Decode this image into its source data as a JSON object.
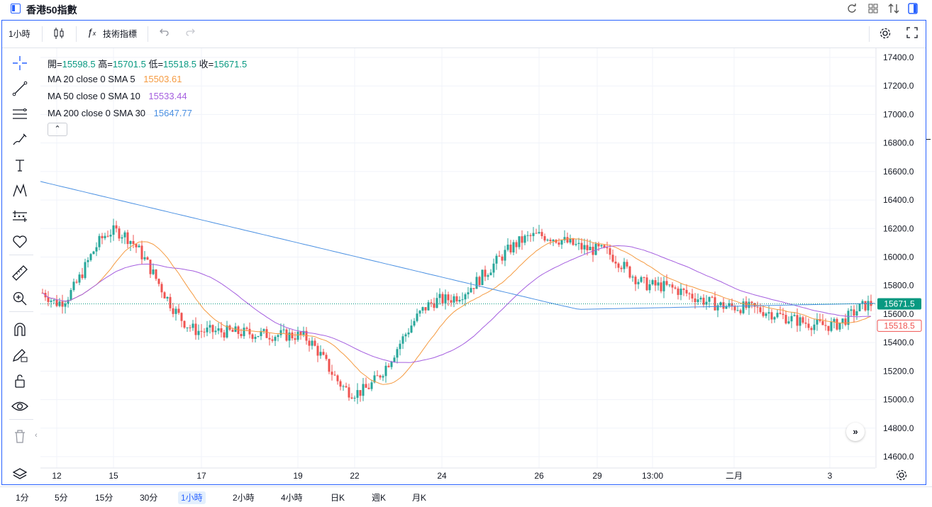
{
  "window": {
    "title": "香港50指數",
    "right_icons": [
      "refresh-icon",
      "grid-icon",
      "compare-icon",
      "panel-icon"
    ]
  },
  "toolbar": {
    "interval": "1小時",
    "indicators_label": "技術指標",
    "icons": [
      "candles-icon",
      "fx-icon",
      "undo-icon",
      "redo-icon",
      "settings-icon",
      "fullscreen-icon"
    ]
  },
  "legend": {
    "ohlc": {
      "open_label": "開=",
      "open": "15598.5",
      "high_label": "高=",
      "high": "15701.5",
      "low_label": "低=",
      "low": "15518.5",
      "close_label": "收=",
      "close": "15671.5"
    },
    "ma": [
      {
        "label": "MA 20 close 0 SMA 5",
        "value": "15503.61",
        "color": "#f59b42"
      },
      {
        "label": "MA 50 close 0 SMA 10",
        "value": "15533.44",
        "color": "#a55fdf"
      },
      {
        "label": "MA 200 close 0 SMA 30",
        "value": "15647.77",
        "color": "#4a90e2"
      }
    ],
    "collapse_icon": "chevron-up-icon"
  },
  "left_tools": [
    "crosshair-icon",
    "trendline-icon",
    "horizontal-lines-icon",
    "brush-icon",
    "text-icon",
    "pattern-icon",
    "measure-icon",
    "heart-icon",
    "ruler-icon",
    "zoom-in-icon",
    "magnet-icon",
    "pencil-lock-icon",
    "lock-icon",
    "eye-icon",
    "trash-icon"
  ],
  "price_axis": {
    "ticks": [
      "17400.0",
      "17200.0",
      "17000.0",
      "16800.0",
      "16600.0",
      "16400.0",
      "16200.0",
      "16000.0",
      "15800.0",
      "15600.0",
      "15400.0",
      "15200.0",
      "15000.0",
      "14800.0",
      "14600.0"
    ],
    "last_price_label": "15671.5",
    "low_price_label": "15518.5"
  },
  "time_axis": {
    "labels": [
      "12",
      "15",
      "17",
      "19",
      "22",
      "24",
      "26",
      "29",
      "13:00",
      "二月",
      "3"
    ]
  },
  "intervals": [
    {
      "label": "1分",
      "active": false
    },
    {
      "label": "5分",
      "active": false
    },
    {
      "label": "15分",
      "active": false
    },
    {
      "label": "30分",
      "active": false
    },
    {
      "label": "1小時",
      "active": true
    },
    {
      "label": "2小時",
      "active": false
    },
    {
      "label": "4小時",
      "active": false
    },
    {
      "label": "日K",
      "active": false
    },
    {
      "label": "週K",
      "active": false
    },
    {
      "label": "月K",
      "active": false
    }
  ],
  "colors": {
    "up": "#26a69a",
    "down": "#ef5350",
    "accent": "#2962ff",
    "grid": "#f0f3fa"
  },
  "chart_data": {
    "type": "candlestick",
    "ylim": [
      14550,
      17450
    ],
    "anchors": [
      {
        "x": "12",
        "y": 15680
      },
      {
        "x": "15",
        "y": 16180
      },
      {
        "x": "17",
        "y": 15480
      },
      {
        "x": "19",
        "y": 15450
      },
      {
        "x": "22",
        "y": 15050
      },
      {
        "x": "24",
        "y": 15700
      },
      {
        "x": "26",
        "y": 16150
      },
      {
        "x": "29",
        "y": 16050
      },
      {
        "x": "13:00",
        "y": 15800
      },
      {
        "x": "二月",
        "y": 15650
      },
      {
        "x": "3",
        "y": 15520
      }
    ],
    "last_price": 15671.5,
    "low_price": 15518.5
  }
}
